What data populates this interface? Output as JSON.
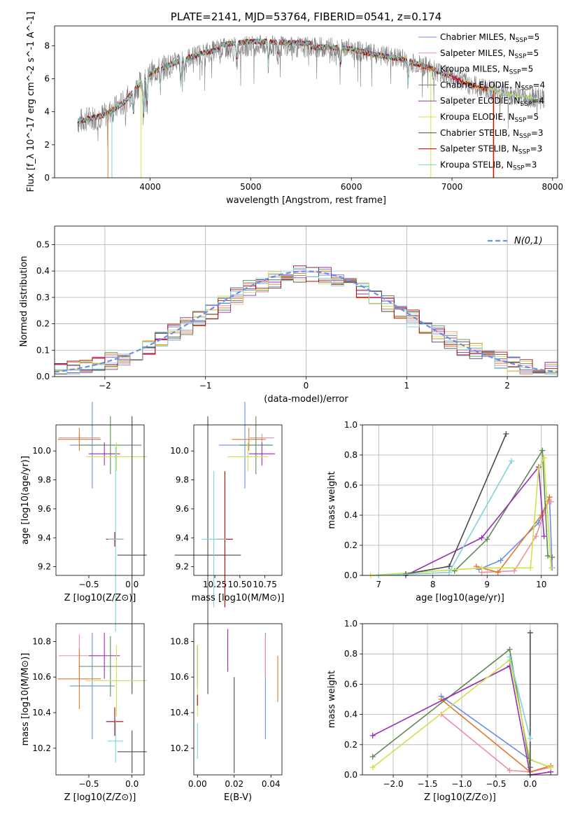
{
  "colors": {
    "chabrier_miles": "#6b8ee6",
    "salpeter_miles": "#f08d9f",
    "kroupa_miles": "#e07a2b",
    "chabrier_elodie": "#5f8a58",
    "salpeter_elodie": "#9b2cb4",
    "kroupa_elodie": "#cfe04a",
    "chabrier_stelib": "#4a4a4a",
    "salpeter_stelib": "#b00000",
    "kroupa_stelib": "#7fd4d8",
    "gaussian": "#6b8ee6",
    "spectrum": "#808080"
  },
  "chart_data": [
    {
      "type": "line",
      "title": "PLATE=2141, MJD=53764, FIBERID=0541, z=0.174",
      "xlabel": "wavelength [Angstrom, rest frame]",
      "ylabel": "Flux [f_λ 10^-17 erg cm^-2 s^-1 A^-1]",
      "xlim": [
        3050,
        8050
      ],
      "ylim": [
        0,
        9.2
      ],
      "xticks": [
        "4000",
        "5000",
        "6000",
        "7000",
        "8000"
      ],
      "yticks": [
        "0",
        "2",
        "4",
        "6",
        "8"
      ],
      "legend_position": "right",
      "legend": [
        {
          "name": "Chabrier MILES",
          "n": "5"
        },
        {
          "name": "Salpeter MILES",
          "n": "5"
        },
        {
          "name": "Kroupa MILES",
          "n": "5"
        },
        {
          "name": "Chabrier ELODIE",
          "n": "4"
        },
        {
          "name": "Salpeter ELODIE",
          "n": "4"
        },
        {
          "name": "Kroupa ELODIE",
          "n": "5"
        },
        {
          "name": "Chabrier STELIB",
          "n": "3"
        },
        {
          "name": "Salpeter STELIB",
          "n": "3"
        },
        {
          "name": "Kroupa STELIB",
          "n": "3"
        }
      ],
      "continuum": {
        "x": [
          3280,
          3400,
          3550,
          3650,
          3750,
          3850,
          4000,
          4100,
          4300,
          4500,
          4700,
          5000,
          5200,
          5500,
          5800,
          6000,
          6200,
          6500,
          6800,
          7000,
          7200,
          7400,
          7600,
          7900
        ],
        "y": [
          3.4,
          3.6,
          3.8,
          4.2,
          4.6,
          5.4,
          6.3,
          6.6,
          7.1,
          7.5,
          7.8,
          8.0,
          8.0,
          7.9,
          7.9,
          7.8,
          7.5,
          7.2,
          6.6,
          6.1,
          5.6,
          5.3,
          5.0,
          4.8
        ]
      }
    },
    {
      "type": "histogram",
      "xlabel": "(data-model)/error",
      "ylabel": "Normed distribution",
      "xlim": [
        -2.5,
        2.5
      ],
      "ylim": [
        0,
        0.57
      ],
      "xticks": [
        "−2",
        "−1",
        "0",
        "1",
        "2"
      ],
      "yticks": [
        "0.0",
        "0.1",
        "0.2",
        "0.3",
        "0.4",
        "0.5"
      ],
      "bin_width": 0.125,
      "legend": "N(0,1)",
      "grid": true
    },
    {
      "type": "scatter",
      "xlabel": "Z [log10(Z/Z⊙)]",
      "ylabel": "age [log10(age/yr)]",
      "xlim": [
        -0.88,
        0.14
      ],
      "ylim": [
        9.14,
        10.18
      ],
      "xticks": [
        "−0.5",
        "0.0"
      ],
      "yticks": [
        "9.2",
        "9.4",
        "9.6",
        "9.8",
        "10.0"
      ],
      "points": [
        {
          "x": -0.46,
          "y": 10.04,
          "xerr": 0.26,
          "yerr": 0.3
        },
        {
          "x": -0.61,
          "y": 10.09,
          "xerr": 0.24,
          "yerr": 0.03
        },
        {
          "x": -0.61,
          "y": 10.08,
          "xerr": 0.25,
          "yerr": 0.08
        },
        {
          "x": -0.25,
          "y": 10.04,
          "xerr": 0.36,
          "yerr": 0.2
        },
        {
          "x": -0.32,
          "y": 9.98,
          "xerr": 0.18,
          "yerr": 0.08
        },
        {
          "x": -0.18,
          "y": 9.96,
          "xerr": 0.35,
          "yerr": 0.1
        },
        {
          "x": 0.0,
          "y": 9.28,
          "xerr": 0.17,
          "yerr": 0.96
        },
        {
          "x": -0.2,
          "y": 9.39,
          "xerr": 0.1,
          "yerr": 0.05
        },
        {
          "x": -0.19,
          "y": 9.39,
          "xerr": 0.09,
          "yerr": 0.64
        }
      ]
    },
    {
      "type": "scatter",
      "xlabel": "mass [log10(M/M⊙)]",
      "ylabel": "",
      "xlim": [
        10.04,
        10.92
      ],
      "ylim": [
        9.14,
        10.18
      ],
      "xticks": [
        "10.25",
        "10.50",
        "10.75"
      ],
      "yticks": [
        "9.2",
        "9.4",
        "9.6",
        "9.8",
        "10.0"
      ],
      "points": [
        {
          "x": 10.55,
          "y": 10.04,
          "xerr": 0.26,
          "yerr": 0.3
        },
        {
          "x": 10.72,
          "y": 10.09,
          "xerr": 0.12,
          "yerr": 0.03
        },
        {
          "x": 10.59,
          "y": 10.08,
          "xerr": 0.17,
          "yerr": 0.08
        },
        {
          "x": 10.66,
          "y": 10.04,
          "xerr": 0.17,
          "yerr": 0.2
        },
        {
          "x": 10.72,
          "y": 9.98,
          "xerr": 0.13,
          "yerr": 0.08
        },
        {
          "x": 10.58,
          "y": 9.96,
          "xerr": 0.2,
          "yerr": 0.1
        },
        {
          "x": 10.18,
          "y": 9.28,
          "xerr": 0.33,
          "yerr": 0.96
        },
        {
          "x": 10.35,
          "y": 9.39,
          "xerr": 0.08,
          "yerr": 0.47
        },
        {
          "x": 10.24,
          "y": 9.39,
          "xerr": 0.12,
          "yerr": 0.47
        }
      ]
    },
    {
      "type": "line",
      "xlabel": "age [log10(age/yr)]",
      "ylabel": "mass weight",
      "xlim": [
        6.7,
        10.3
      ],
      "ylim": [
        0,
        1.0
      ],
      "xticks": [
        "7",
        "8",
        "9",
        "10"
      ],
      "yticks": [
        "0.0",
        "0.2",
        "0.4",
        "0.6",
        "0.8",
        "1.0"
      ],
      "grid": true,
      "series": [
        {
          "color": "chabrier_miles",
          "x": [
            8.85,
            9.25,
            9.95,
            10.15,
            10.2
          ],
          "y": [
            0.04,
            0.1,
            0.35,
            0.52,
            0.05
          ]
        },
        {
          "color": "salpeter_miles",
          "x": [
            8.9,
            9.5,
            9.9,
            10.13,
            10.18
          ],
          "y": [
            0.02,
            0.03,
            0.26,
            0.49,
            0.49
          ]
        },
        {
          "color": "kroupa_miles",
          "x": [
            8.8,
            9.2,
            10.0,
            10.15
          ],
          "y": [
            0.06,
            0.02,
            0.4,
            0.52
          ]
        },
        {
          "color": "chabrier_elodie",
          "x": [
            8.4,
            9.0,
            10.02,
            10.12,
            10.2
          ],
          "y": [
            0.03,
            0.24,
            0.83,
            0.13,
            0.12
          ]
        },
        {
          "color": "salpeter_elodie",
          "x": [
            7.5,
            8.9,
            9.95,
            10.05
          ],
          "y": [
            0.0,
            0.25,
            0.72,
            0.26
          ]
        },
        {
          "color": "kroupa_elodie",
          "x": [
            6.85,
            8.9,
            9.8,
            9.95,
            10.05,
            10.18
          ],
          "y": [
            0.0,
            0.05,
            0.05,
            0.71,
            0.78,
            0.05
          ]
        },
        {
          "color": "chabrier_stelib",
          "x": [
            7.5,
            8.3,
            9.35
          ],
          "y": [
            0.01,
            0.06,
            0.94
          ]
        },
        {
          "color": "kroupa_stelib",
          "x": [
            7.0,
            8.3,
            9.45
          ],
          "y": [
            0.0,
            0.02,
            0.76
          ]
        }
      ]
    },
    {
      "type": "scatter",
      "xlabel": "Z [log10(Z/Z⊙)]",
      "ylabel": "mass [log10(M/M⊙)]",
      "xlim": [
        -0.88,
        0.14
      ],
      "ylim": [
        10.05,
        10.9
      ],
      "xticks": [
        "−0.5",
        "0.0"
      ],
      "yticks": [
        "10.2",
        "10.4",
        "10.6",
        "10.8"
      ],
      "points": [
        {
          "x": -0.46,
          "y": 10.55,
          "xerr": 0.26,
          "yerr": 0.3
        },
        {
          "x": -0.61,
          "y": 10.72,
          "xerr": 0.24,
          "yerr": 0.12
        },
        {
          "x": -0.61,
          "y": 10.59,
          "xerr": 0.25,
          "yerr": 0.17
        },
        {
          "x": -0.25,
          "y": 10.66,
          "xerr": 0.36,
          "yerr": 0.17
        },
        {
          "x": -0.32,
          "y": 10.72,
          "xerr": 0.18,
          "yerr": 0.13
        },
        {
          "x": -0.18,
          "y": 10.58,
          "xerr": 0.35,
          "yerr": 0.2
        },
        {
          "x": 0.0,
          "y": 10.18,
          "xerr": 0.17,
          "yerr": 0.12
        },
        {
          "x": -0.2,
          "y": 10.35,
          "xerr": 0.1,
          "yerr": 0.08
        },
        {
          "x": -0.19,
          "y": 10.24,
          "xerr": 0.09,
          "yerr": 0.12
        }
      ]
    },
    {
      "type": "scatter",
      "xlabel": "E(B-V)",
      "ylabel": "",
      "xlim": [
        -0.002,
        0.046
      ],
      "ylim": [
        10.05,
        10.9
      ],
      "xticks": [
        "0.00",
        "0.02",
        "0.04"
      ],
      "yticks": [
        "10.2",
        "10.4",
        "10.6",
        "10.8"
      ],
      "points": [
        {
          "x": 0.037,
          "y": 10.55,
          "yerr": 0.3
        },
        {
          "x": 0.037,
          "y": 10.72,
          "yerr": 0.12
        },
        {
          "x": 0.0437,
          "y": 10.59,
          "yerr": 0.13
        },
        {
          "x": 0.0,
          "y": 10.66,
          "yerr": 0.12
        },
        {
          "x": 0.0165,
          "y": 10.75,
          "yerr": 0.12
        },
        {
          "x": 0.0,
          "y": 10.58,
          "yerr": 0.2
        },
        {
          "x": 0.02,
          "y": 10.33,
          "yerr": 0.27
        },
        {
          "x": 0.0,
          "y": 10.47,
          "yerr": 0.03
        },
        {
          "x": 0.0,
          "y": 10.24,
          "yerr": 0.1
        }
      ]
    },
    {
      "type": "line",
      "xlabel": "Z [log10(Z/Z⊙)]",
      "ylabel": "mass weight",
      "xlim": [
        -2.45,
        0.4
      ],
      "ylim": [
        0,
        1.0
      ],
      "xticks": [
        "−2.0",
        "−1.5",
        "−1.0",
        "−0.5",
        "0.0"
      ],
      "yticks": [
        "0.0",
        "0.2",
        "0.4",
        "0.6",
        "0.8",
        "1.0"
      ],
      "grid": true,
      "series": [
        {
          "color": "chabrier_miles",
          "x": [
            -1.3,
            0.0,
            0.3
          ],
          "y": [
            0.52,
            0.1,
            0.05
          ]
        },
        {
          "color": "salpeter_miles",
          "x": [
            -1.3,
            -0.3,
            0.0,
            0.3
          ],
          "y": [
            0.4,
            0.03,
            0.02,
            0.05
          ]
        },
        {
          "color": "kroupa_miles",
          "x": [
            -1.3,
            0.0,
            0.3
          ],
          "y": [
            0.5,
            0.02,
            0.06
          ]
        },
        {
          "color": "chabrier_elodie",
          "x": [
            -2.3,
            -0.3,
            0.0
          ],
          "y": [
            0.12,
            0.83,
            0.05
          ]
        },
        {
          "color": "salpeter_elodie",
          "x": [
            -2.3,
            -0.3,
            0.0,
            0.3
          ],
          "y": [
            0.26,
            0.72,
            0.0,
            0.02
          ]
        },
        {
          "color": "kroupa_elodie",
          "x": [
            -2.3,
            -0.3,
            0.0,
            0.3
          ],
          "y": [
            0.05,
            0.76,
            0.1,
            0.05
          ]
        },
        {
          "color": "chabrier_stelib",
          "x": [
            0.0,
            0.0
          ],
          "y": [
            0.0,
            0.94
          ]
        },
        {
          "color": "kroupa_stelib",
          "x": [
            -0.3,
            0.0
          ],
          "y": [
            0.78,
            0.24
          ]
        }
      ]
    }
  ]
}
